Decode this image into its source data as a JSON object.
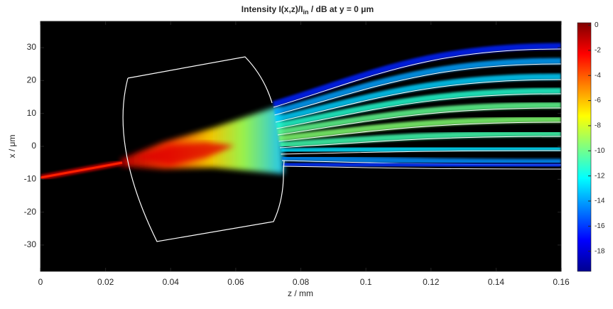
{
  "chart_data": {
    "type": "image",
    "title": [
      "Intensity I(x,z)/I",
      "in",
      " / dB at y = 0 μm"
    ],
    "xlabel": "z / mm",
    "ylabel": "x / μm",
    "xlim": [
      0,
      0.16
    ],
    "xticks": [
      0,
      0.02,
      0.04,
      0.06,
      0.08,
      0.1,
      0.12,
      0.14,
      0.16
    ],
    "ylim": [
      -38,
      38
    ],
    "yticks": [
      -30,
      -20,
      -10,
      0,
      10,
      20,
      30
    ],
    "colormap": "jet",
    "clim": [
      -19.6,
      0.2
    ],
    "cticks": [
      -18,
      -16,
      -14,
      -12,
      -10,
      -8,
      -6,
      -4,
      -2,
      0
    ]
  }
}
